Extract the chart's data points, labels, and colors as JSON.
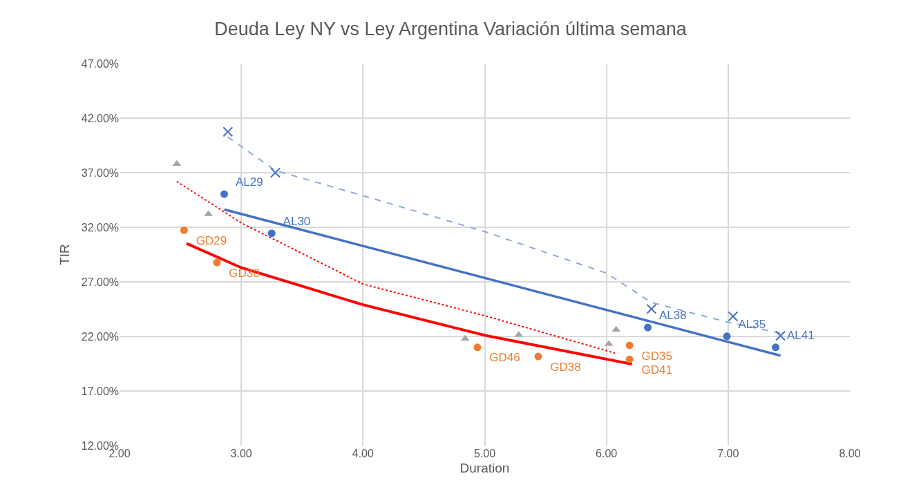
{
  "chart_data": {
    "type": "scatter",
    "title": "Deuda Ley NY vs Ley Argentina Variación última semana",
    "xlabel": "Duration",
    "ylabel": "TIR",
    "xlim": [
      2,
      8
    ],
    "ylim": [
      12,
      47
    ],
    "xticks": [
      {
        "value": 2,
        "label": "2.00"
      },
      {
        "value": 3,
        "label": "3.00"
      },
      {
        "value": 4,
        "label": "4.00"
      },
      {
        "value": 5,
        "label": "5.00"
      },
      {
        "value": 6,
        "label": "6.00"
      },
      {
        "value": 7,
        "label": "7.00"
      },
      {
        "value": 8,
        "label": "8.00"
      }
    ],
    "yticks": [
      {
        "value": 12,
        "label": "12.00%"
      },
      {
        "value": 17,
        "label": "17.00%"
      },
      {
        "value": 22,
        "label": "22.00%"
      },
      {
        "value": 27,
        "label": "27.00%"
      },
      {
        "value": 32,
        "label": "32.00%"
      },
      {
        "value": 37,
        "label": "37.00%"
      },
      {
        "value": 42,
        "label": "42.00%"
      },
      {
        "value": 47,
        "label": "47.00%"
      }
    ],
    "grid": true,
    "series": [
      {
        "type": "line",
        "color": "#8faadc",
        "line_style": "dashed",
        "marker": "none",
        "x": [
          2.89,
          3.28,
          4.0,
          5.0,
          6.0,
          6.37,
          7.0,
          7.43
        ],
        "values": [
          40.27,
          37.2,
          34.9,
          31.6,
          27.8,
          25.1,
          23.3,
          22.3
        ]
      },
      {
        "type": "line",
        "color": "#ff0000",
        "line_style": "dotted",
        "marker": "none",
        "x": [
          2.47,
          3.0,
          4.0,
          5.0,
          6.07
        ],
        "values": [
          36.2,
          32.4,
          26.8,
          23.9,
          20.47
        ]
      },
      {
        "type": "line",
        "color": "#ff0000",
        "line_style": "solid",
        "marker": "none",
        "x": [
          2.55,
          3.0,
          4.0,
          5.0,
          6.21
        ],
        "values": [
          30.52,
          28.3,
          24.9,
          22.1,
          19.46
        ]
      },
      {
        "type": "line",
        "color": "#4472c4",
        "line_style": "solid",
        "marker": "none",
        "x": [
          2.86,
          7.43
        ],
        "values": [
          33.63,
          20.24
        ]
      },
      {
        "color": "#a5a5a5",
        "marker": "triangle",
        "x": [
          2.47,
          2.73,
          4.84,
          5.28,
          6.02,
          6.08
        ],
        "values": [
          37.8,
          33.2,
          21.8,
          22.14,
          21.3,
          22.62
        ]
      },
      {
        "color": "#4472c4",
        "marker": "cross",
        "x": [
          2.89,
          3.28,
          6.37,
          7.04,
          7.43
        ],
        "values": [
          40.75,
          37.0,
          24.52,
          23.84,
          22.06
        ]
      },
      {
        "color": "#4472c4",
        "marker": "circle",
        "x": [
          2.86,
          3.25,
          6.34,
          6.99,
          7.39
        ],
        "values": [
          35.04,
          31.45,
          22.82,
          22.01,
          21.0
        ],
        "value_labels": [
          "AL29",
          "AL30",
          "AL38",
          "AL35",
          "AL41"
        ]
      },
      {
        "color": "#ed7d31",
        "marker": "circle",
        "x": [
          2.53,
          2.8,
          4.94,
          5.44,
          6.19,
          6.19
        ],
        "values": [
          31.73,
          28.77,
          21.0,
          20.16,
          21.18,
          19.9
        ],
        "value_labels": [
          "GD29",
          "GD30",
          "GD46",
          "GD38",
          "GD35",
          "GD41"
        ]
      }
    ]
  }
}
